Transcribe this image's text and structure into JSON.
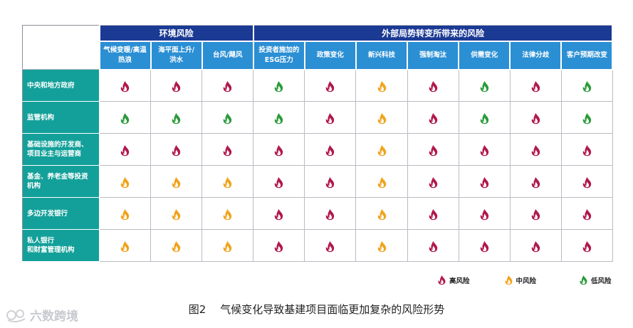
{
  "groups": {
    "environment": "环境风险",
    "external": "外部局势转变所带来的风险"
  },
  "columns": [
    [
      "气候变暖/高温",
      "热浪"
    ],
    [
      "海平面上升/",
      "洪水"
    ],
    [
      "台风/飓风"
    ],
    [
      "投资者施加的",
      "ESG压力"
    ],
    [
      "政策变化"
    ],
    [
      "新兴科技"
    ],
    [
      "强制淘汰"
    ],
    [
      "供需变化"
    ],
    [
      "法律分歧"
    ],
    [
      "客户预期改变"
    ]
  ],
  "rows": [
    {
      "label": [
        "中央和地方政府"
      ],
      "risks": [
        "high",
        "high",
        "high",
        "low",
        "high",
        "mid",
        "high",
        "low",
        "high",
        "low"
      ]
    },
    {
      "label": [
        "监管机构"
      ],
      "risks": [
        "low",
        "low",
        "low",
        "low",
        "high",
        "mid",
        "high",
        "low",
        "high",
        "low"
      ]
    },
    {
      "label": [
        "基础设施的开发商、",
        "项目业主与运营商"
      ],
      "risks": [
        "high",
        "high",
        "high",
        "high",
        "high",
        "mid",
        "high",
        "high",
        "high",
        "high"
      ]
    },
    {
      "label": [
        "基金、养老金等投资",
        "机构"
      ],
      "risks": [
        "mid",
        "mid",
        "mid",
        "high",
        "high",
        "mid",
        "high",
        "high",
        "high",
        "high"
      ]
    },
    {
      "label": [
        "多边开发银行"
      ],
      "risks": [
        "mid",
        "mid",
        "mid",
        "high",
        "high",
        "mid",
        "high",
        "high",
        "high",
        "high"
      ]
    },
    {
      "label": [
        "私人银行",
        "和财富管理机构"
      ],
      "risks": [
        "mid",
        "mid",
        "mid",
        "high",
        "high",
        "mid",
        "high",
        "high",
        "high",
        "high"
      ]
    }
  ],
  "risk_colors": {
    "high": "#b2174f",
    "mid": "#f2a21b",
    "low": "#2a9a3a"
  },
  "legend": {
    "high": "高风险",
    "mid": "中风险",
    "low": "低风险"
  },
  "caption": {
    "figure_no": "图2",
    "title": "气候变化导致基建项目面临更加复杂的风险形势"
  },
  "watermark": "六数跨境"
}
